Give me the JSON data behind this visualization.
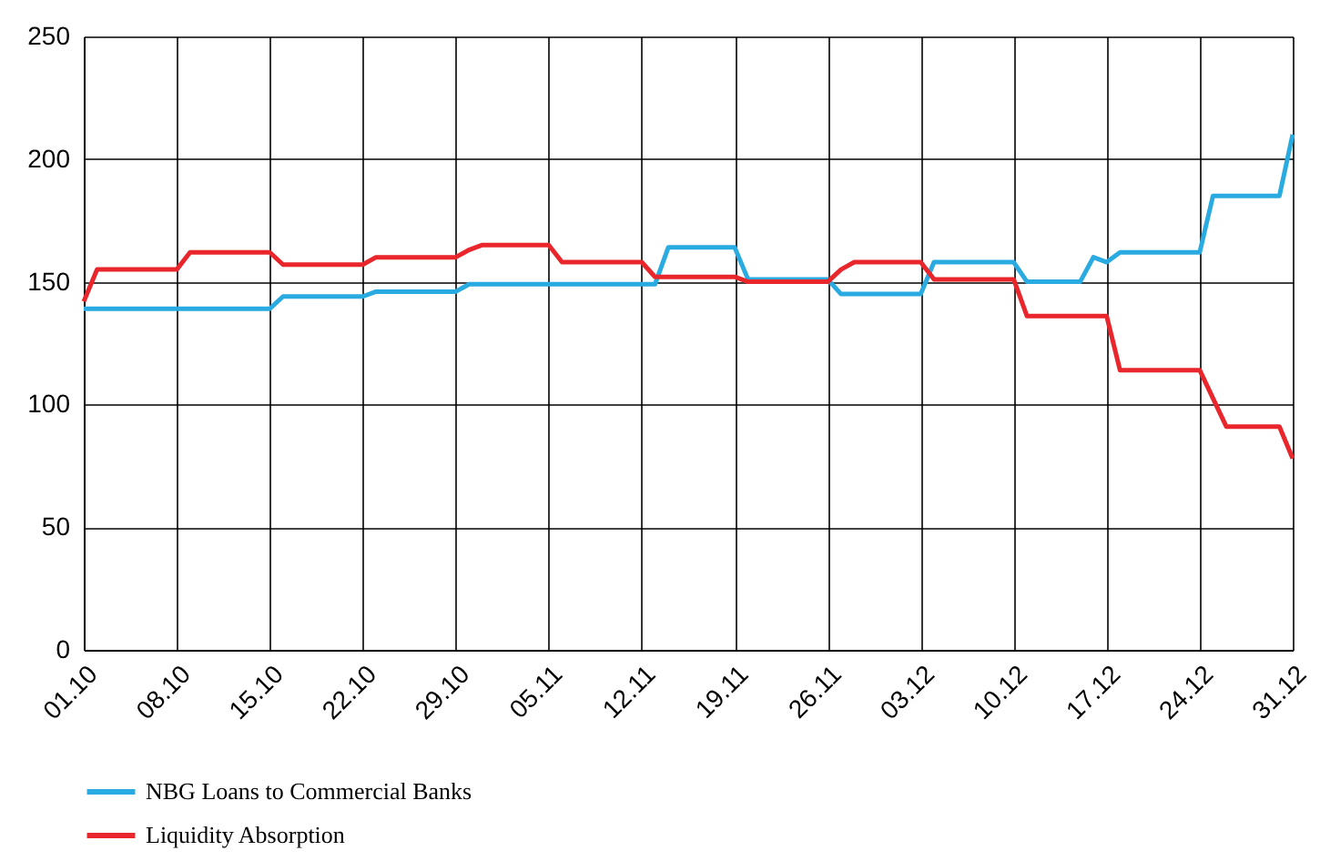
{
  "chart_data": {
    "type": "line",
    "xlim": [
      "--10-01",
      "--12-31"
    ],
    "ylim": [
      0,
      250
    ],
    "xticks": [
      {
        "value": "--10-01",
        "label": "01.10"
      },
      {
        "value": "--10-08",
        "label": "08.10"
      },
      {
        "value": "--10-15",
        "label": "15.10"
      },
      {
        "value": "--10-22",
        "label": "22.10"
      },
      {
        "value": "--10-29",
        "label": "29.10"
      },
      {
        "value": "--11-05",
        "label": "05.11"
      },
      {
        "value": "--11-12",
        "label": "12.11"
      },
      {
        "value": "--11-19",
        "label": "19.11"
      },
      {
        "value": "--11-26",
        "label": "26.11"
      },
      {
        "value": "--12-03",
        "label": "03.12"
      },
      {
        "value": "--12-10",
        "label": "10.12"
      },
      {
        "value": "--12-17",
        "label": "17.12"
      },
      {
        "value": "--12-24",
        "label": "24.12"
      },
      {
        "value": "--12-31",
        "label": "31.12"
      }
    ],
    "yticks": [
      0,
      50,
      100,
      150,
      200,
      250
    ],
    "grid": true,
    "legend": "bottom",
    "marker": "none",
    "line_style": "solid",
    "series": [
      {
        "name": "NBG Loans to Commercial Banks",
        "color": "#29abe2",
        "x": [
          "--10-01",
          "--10-15",
          "--10-16",
          "--10-22",
          "--10-23",
          "--10-29",
          "--10-30",
          "--11-13",
          "--11-14",
          "--11-19",
          "--11-20",
          "--11-26",
          "--11-27",
          "--12-03",
          "--12-04",
          "--12-10",
          "--12-11",
          "--12-15",
          "--12-16",
          "--12-17",
          "--12-18",
          "--12-24",
          "--12-25",
          "--12-30",
          "--12-31"
        ],
        "values": [
          139,
          139,
          144,
          144,
          146,
          146,
          149,
          149,
          164,
          164,
          151,
          151,
          145,
          145,
          158,
          158,
          150,
          150,
          160,
          158,
          162,
          162,
          185,
          185,
          210
        ]
      },
      {
        "name": "Liquidity Absorption",
        "color": "#e8262b",
        "x": [
          "--10-01",
          "--10-02",
          "--10-08",
          "--10-09",
          "--10-15",
          "--10-16",
          "--10-22",
          "--10-23",
          "--10-29",
          "--10-30",
          "--10-31",
          "--11-05",
          "--11-06",
          "--11-12",
          "--11-13",
          "--11-19",
          "--11-20",
          "--11-26",
          "--11-27",
          "--11-28",
          "--12-03",
          "--12-04",
          "--12-10",
          "--12-11",
          "--12-17",
          "--12-18",
          "--12-24",
          "--12-26",
          "--12-30",
          "--12-31"
        ],
        "values": [
          142,
          155,
          155,
          162,
          162,
          157,
          157,
          160,
          160,
          163,
          165,
          165,
          158,
          158,
          152,
          152,
          150,
          150,
          155,
          158,
          158,
          151,
          151,
          136,
          136,
          114,
          114,
          91,
          91,
          78
        ]
      }
    ]
  }
}
